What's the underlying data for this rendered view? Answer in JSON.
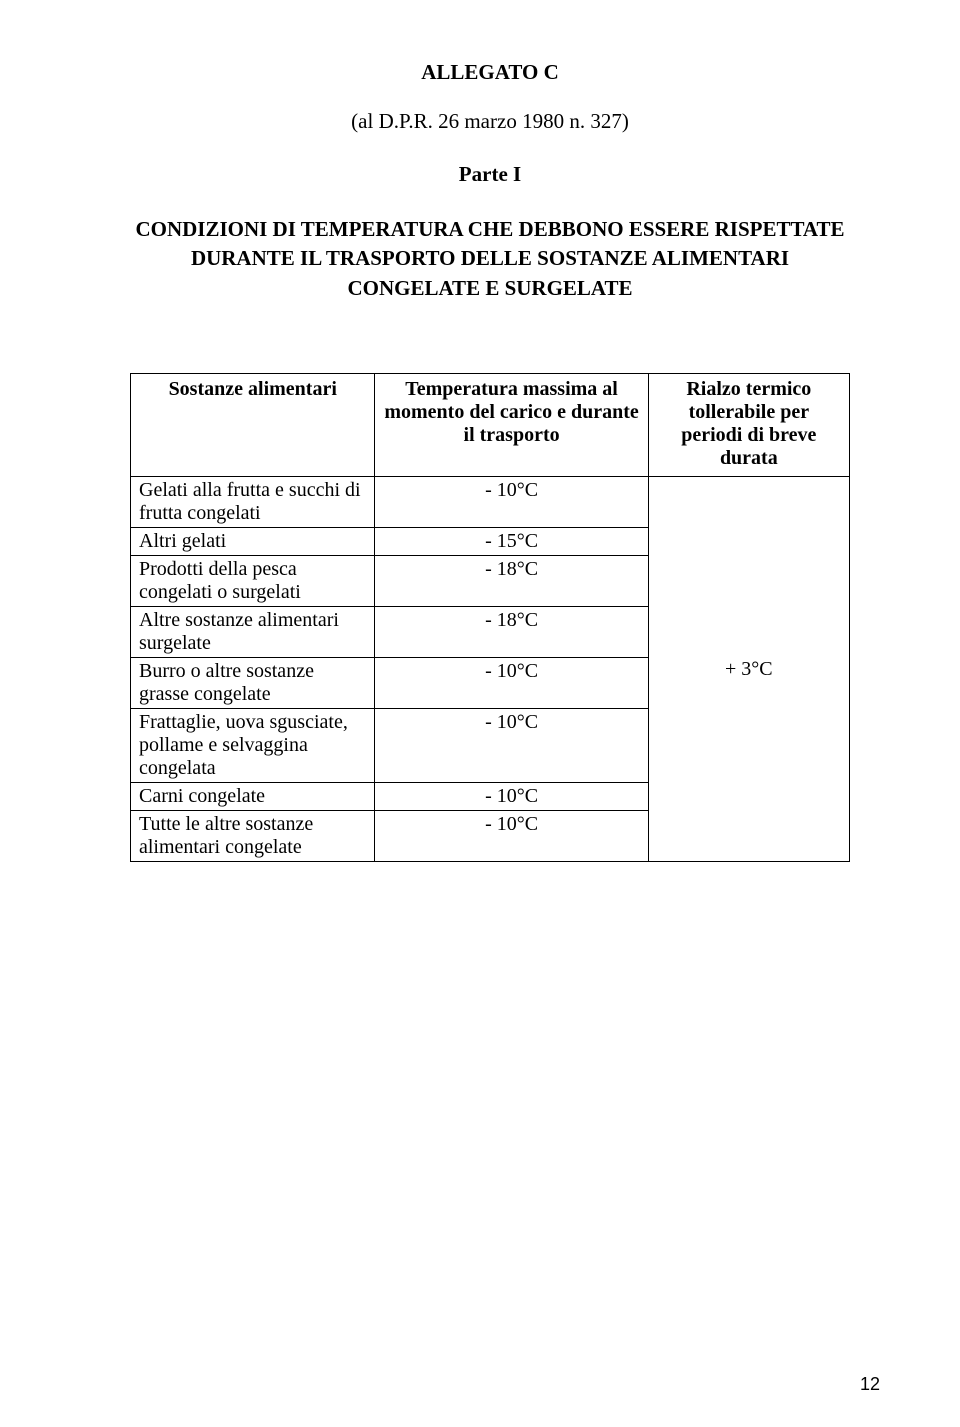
{
  "doc": {
    "title": "ALLEGATO  C",
    "subtitle": "(al D.P.R. 26 marzo 1980 n. 327)",
    "part": "Parte I",
    "heading": "CONDIZIONI DI TEMPERATURA CHE DEBBONO ESSERE RISPETTATE DURANTE IL TRASPORTO DELLE SOSTANZE ALIMENTARI CONGELATE E SURGELATE"
  },
  "table": {
    "headers": {
      "c1": "Sostanze alimentari",
      "c2": "Temperatura massima al momento del carico e durante il trasporto",
      "c3": "Rialzo termico tollerabile per periodi di breve durata"
    },
    "rows": [
      {
        "c1": "Gelati alla frutta e succhi di frutta congelati",
        "c2": "- 10°C"
      },
      {
        "c1": "Altri gelati",
        "c2": "- 15°C"
      },
      {
        "c1": "Prodotti della pesca congelati o surgelati",
        "c2": "- 18°C"
      },
      {
        "c1": "Altre sostanze alimentari surgelate",
        "c2": "- 18°C"
      },
      {
        "c1": "Burro o altre sostanze grasse congelate",
        "c2": "- 10°C"
      },
      {
        "c1": "Frattaglie, uova sgusciate, pollame e selvaggina congelata",
        "c2": "- 10°C"
      },
      {
        "c1": "Carni congelate",
        "c2": "- 10°C"
      },
      {
        "c1": "Tutte le altre sostanze alimentari congelate",
        "c2": "- 10°C"
      }
    ],
    "merge_c3": "+ 3°C"
  },
  "page_number": "12",
  "style": {
    "background_color": "#ffffff",
    "text_color": "#000000",
    "border_color": "#000000",
    "font_family": "Times New Roman"
  }
}
